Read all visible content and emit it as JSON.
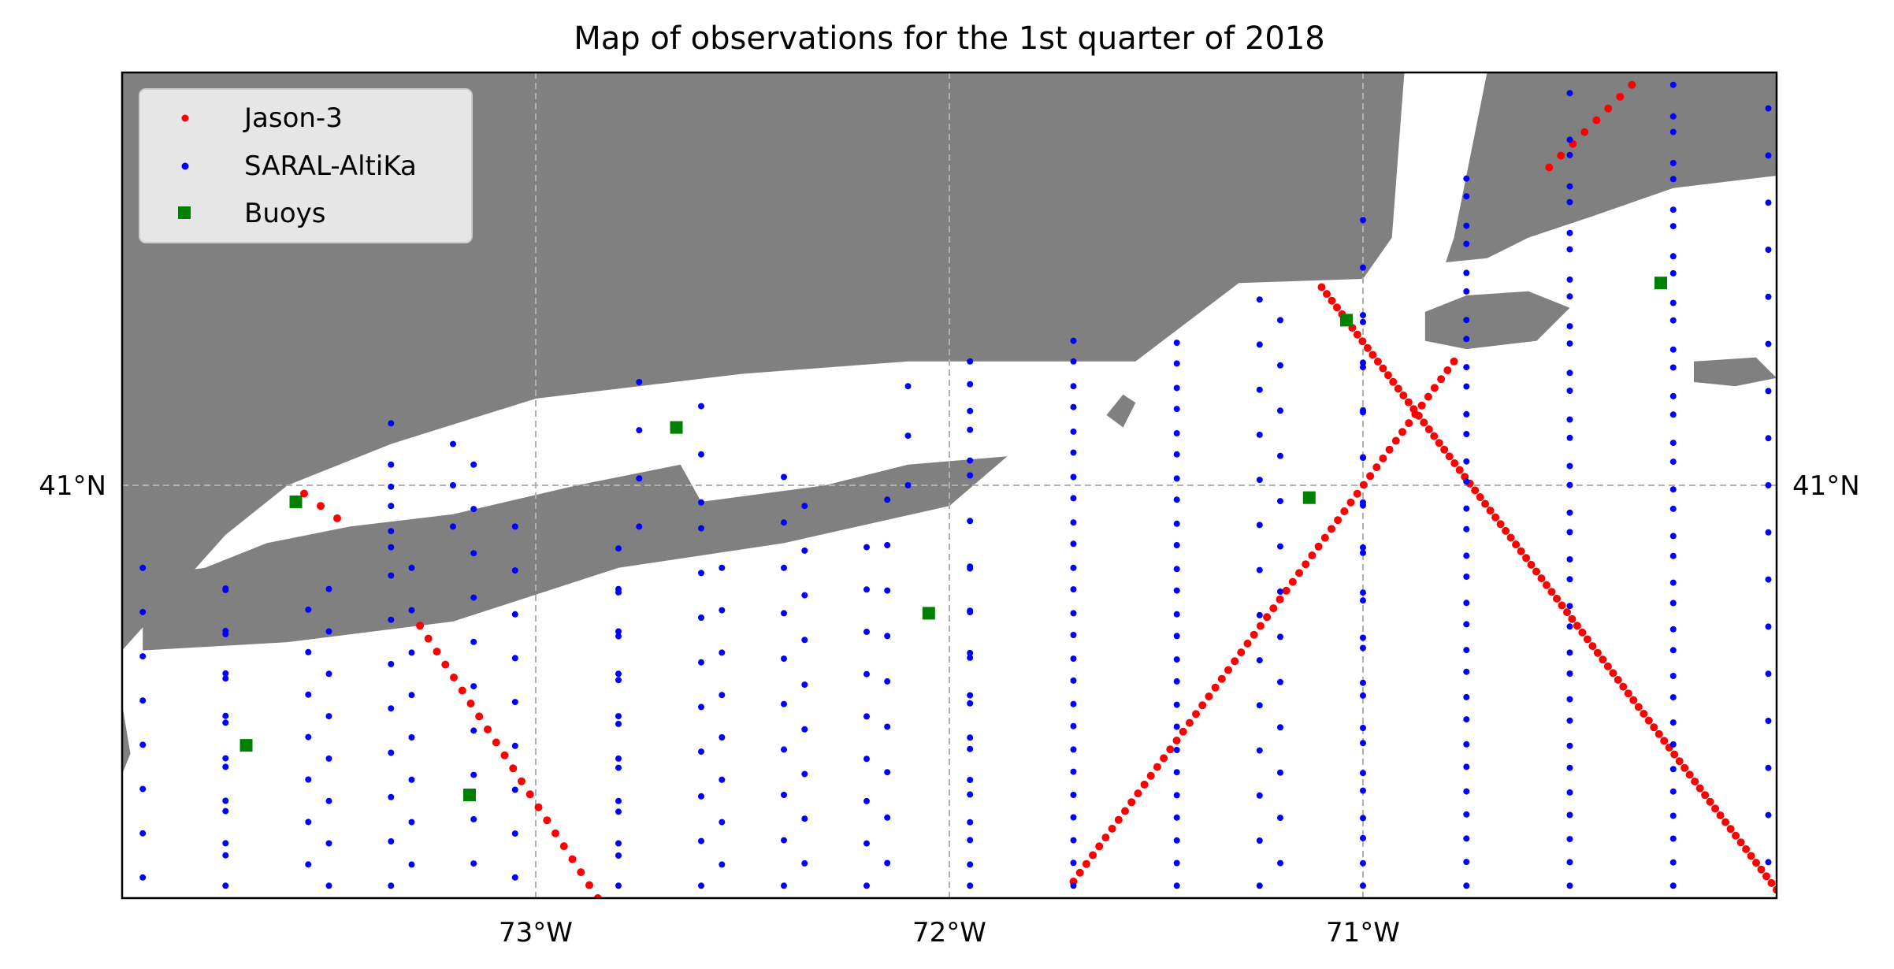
{
  "title": "Map of observations for the 1st quarter of 2018",
  "colors": {
    "land": "#808080",
    "water": "#ffffff",
    "grid": "#b0b0b0",
    "jason": "#ff0000",
    "saral": "#0000ff",
    "buoy": "#008000",
    "legend_bg": "#e6e6e6",
    "legend_border": "#cccccc"
  },
  "legend": {
    "placement": "top-left",
    "items": [
      {
        "label": "Jason-3",
        "marker": "dot",
        "color": "#ff0000"
      },
      {
        "label": "SARAL-AltiKa",
        "marker": "dot",
        "color": "#0000ff"
      },
      {
        "label": "Buoys",
        "marker": "square",
        "color": "#008000"
      }
    ]
  },
  "axes": {
    "lon_range": [
      -74.0,
      -70.0
    ],
    "lat_range": [
      40.0,
      42.0
    ],
    "x_ticks": [
      {
        "value": -73,
        "label": "73°W"
      },
      {
        "value": -72,
        "label": "72°W"
      },
      {
        "value": -71,
        "label": "71°W"
      }
    ],
    "y_ticks": [
      {
        "value": 41,
        "label": "41°N"
      }
    ],
    "grid": true
  },
  "chart_data": {
    "type": "scatter",
    "xlabel": "",
    "ylabel": "",
    "xlim": [
      -74.0,
      -70.0
    ],
    "ylim": [
      40.0,
      42.0
    ],
    "series": [
      {
        "name": "Jason-3",
        "marker": "dot",
        "color": "#ff0000",
        "tracks": [
          {
            "from": [
              -70.0,
              40.02
            ],
            "to": [
              -71.1,
              41.48
            ],
            "n": 90
          },
          {
            "from": [
              -71.7,
              40.04
            ],
            "to": [
              -70.78,
              41.3
            ],
            "n": 60
          },
          {
            "from": [
              -72.85,
              40.0
            ],
            "to": [
              -73.28,
              40.66
            ],
            "n": 22
          },
          {
            "from": [
              -70.35,
              41.97
            ],
            "to": [
              -70.55,
              41.77
            ],
            "n": 8
          },
          {
            "from": [
              -73.56,
              40.98
            ],
            "to": [
              -73.48,
              40.92
            ],
            "n": 3
          }
        ]
      },
      {
        "name": "SARAL-AltiKa",
        "marker": "dot",
        "color": "#0000ff",
        "zigzags": [
          {
            "lon_a": -73.95,
            "lon_b": -73.75,
            "lat_from": 40.05,
            "lat_to": 40.8,
            "n": 15
          },
          {
            "lon_a": -73.75,
            "lon_b": -73.55,
            "lat_from": 40.03,
            "lat_to": 40.75,
            "n": 15
          },
          {
            "lon_a": -73.5,
            "lon_b": -73.3,
            "lat_from": 40.03,
            "lat_to": 40.8,
            "n": 16
          },
          {
            "lon_a": -73.35,
            "lon_b": -73.15,
            "lat_from": 40.03,
            "lat_to": 41.05,
            "n": 20
          },
          {
            "lon_a": -73.05,
            "lon_b": -72.8,
            "lat_from": 40.05,
            "lat_to": 40.9,
            "n": 17
          },
          {
            "lon_a": -72.8,
            "lon_b": -72.55,
            "lat_from": 40.03,
            "lat_to": 40.8,
            "n": 16
          },
          {
            "lon_a": -72.6,
            "lon_b": -72.35,
            "lat_from": 40.03,
            "lat_to": 40.95,
            "n": 18
          },
          {
            "lon_a": -72.4,
            "lon_b": -72.15,
            "lat_from": 40.03,
            "lat_to": 41.02,
            "n": 19
          },
          {
            "lon_a": -72.2,
            "lon_b": -71.95,
            "lat_from": 40.03,
            "lat_to": 40.85,
            "n": 17
          },
          {
            "lon_a": -71.95,
            "lon_b": -71.7,
            "lat_from": 40.03,
            "lat_to": 41.3,
            "n": 24
          },
          {
            "lon_a": -71.7,
            "lon_b": -71.45,
            "lat_from": 40.03,
            "lat_to": 41.35,
            "n": 25
          },
          {
            "lon_a": -71.45,
            "lon_b": -71.2,
            "lat_from": 40.03,
            "lat_to": 41.4,
            "n": 26
          },
          {
            "lon_a": -71.25,
            "lon_b": -71.0,
            "lat_from": 40.03,
            "lat_to": 41.45,
            "n": 27
          },
          {
            "lon_a": -71.0,
            "lon_b": -70.75,
            "lat_from": 40.03,
            "lat_to": 41.7,
            "n": 30
          },
          {
            "lon_a": -70.75,
            "lon_b": -70.5,
            "lat_from": 40.03,
            "lat_to": 41.8,
            "n": 32
          },
          {
            "lon_a": -70.5,
            "lon_b": -70.25,
            "lat_from": 40.03,
            "lat_to": 41.95,
            "n": 35
          },
          {
            "lon_a": -70.25,
            "lon_b": -70.02,
            "lat_from": 40.03,
            "lat_to": 41.97,
            "n": 35
          },
          {
            "lon_a": -73.35,
            "lon_b": -73.2,
            "lat_from": 40.85,
            "lat_to": 41.15,
            "n": 7
          },
          {
            "lon_a": -72.75,
            "lon_b": -72.6,
            "lat_from": 40.9,
            "lat_to": 41.25,
            "n": 7
          },
          {
            "lon_a": -72.1,
            "lon_b": -71.95,
            "lat_from": 41.0,
            "lat_to": 41.3,
            "n": 6
          }
        ]
      },
      {
        "name": "Buoys",
        "marker": "square",
        "color": "#008000",
        "points": [
          {
            "lon": -73.58,
            "lat": 40.96
          },
          {
            "lon": -72.66,
            "lat": 41.14
          },
          {
            "lon": -72.05,
            "lat": 40.69
          },
          {
            "lon": -71.13,
            "lat": 40.97
          },
          {
            "lon": -71.04,
            "lat": 41.4
          },
          {
            "lon": -70.28,
            "lat": 41.49
          },
          {
            "lon": -73.7,
            "lat": 40.37
          },
          {
            "lon": -73.16,
            "lat": 40.25
          }
        ]
      }
    ]
  },
  "map_layers": {
    "land": [
      {
        "name": "new-england-coast",
        "points": [
          [
            -74.0,
            42.0
          ],
          [
            -70.9,
            42.0
          ],
          [
            -70.93,
            41.6
          ],
          [
            -71.0,
            41.5
          ],
          [
            -71.3,
            41.49
          ],
          [
            -71.55,
            41.3
          ],
          [
            -72.1,
            41.3
          ],
          [
            -72.5,
            41.27
          ],
          [
            -73.0,
            41.21
          ],
          [
            -73.35,
            41.1
          ],
          [
            -73.6,
            41.0
          ],
          [
            -73.75,
            40.88
          ],
          [
            -74.0,
            40.6
          ]
        ]
      },
      {
        "name": "cape-cod",
        "points": [
          [
            -70.7,
            42.0
          ],
          [
            -70.0,
            42.0
          ],
          [
            -70.0,
            41.75
          ],
          [
            -70.25,
            41.72
          ],
          [
            -70.45,
            41.65
          ],
          [
            -70.6,
            41.6
          ],
          [
            -70.7,
            41.55
          ],
          [
            -70.8,
            41.54
          ],
          [
            -70.78,
            41.6
          ]
        ]
      },
      {
        "name": "long-island",
        "points": [
          [
            -73.95,
            40.6
          ],
          [
            -73.6,
            40.62
          ],
          [
            -73.2,
            40.67
          ],
          [
            -72.8,
            40.8
          ],
          [
            -72.4,
            40.86
          ],
          [
            -72.0,
            40.95
          ],
          [
            -71.86,
            41.07
          ],
          [
            -72.1,
            41.05
          ],
          [
            -72.3,
            41.0
          ],
          [
            -72.6,
            40.96
          ],
          [
            -72.65,
            41.05
          ],
          [
            -72.9,
            41.0
          ],
          [
            -73.2,
            40.93
          ],
          [
            -73.45,
            40.9
          ],
          [
            -73.65,
            40.86
          ],
          [
            -73.8,
            40.8
          ],
          [
            -73.95,
            40.78
          ]
        ]
      },
      {
        "name": "martha-s-vineyard",
        "points": [
          [
            -70.85,
            41.42
          ],
          [
            -70.75,
            41.46
          ],
          [
            -70.6,
            41.47
          ],
          [
            -70.5,
            41.43
          ],
          [
            -70.58,
            41.35
          ],
          [
            -70.75,
            41.33
          ],
          [
            -70.85,
            41.35
          ]
        ]
      },
      {
        "name": "nantucket",
        "points": [
          [
            -70.2,
            41.3
          ],
          [
            -70.05,
            41.31
          ],
          [
            -70.0,
            41.26
          ],
          [
            -70.1,
            41.24
          ],
          [
            -70.2,
            41.25
          ]
        ]
      },
      {
        "name": "block-island",
        "points": [
          [
            -71.58,
            41.22
          ],
          [
            -71.55,
            41.2
          ],
          [
            -71.58,
            41.14
          ],
          [
            -71.62,
            41.17
          ]
        ]
      },
      {
        "name": "new-jersey-edge",
        "points": [
          [
            -74.0,
            40.47
          ],
          [
            -73.98,
            40.35
          ],
          [
            -74.0,
            40.3
          ]
        ]
      }
    ]
  }
}
